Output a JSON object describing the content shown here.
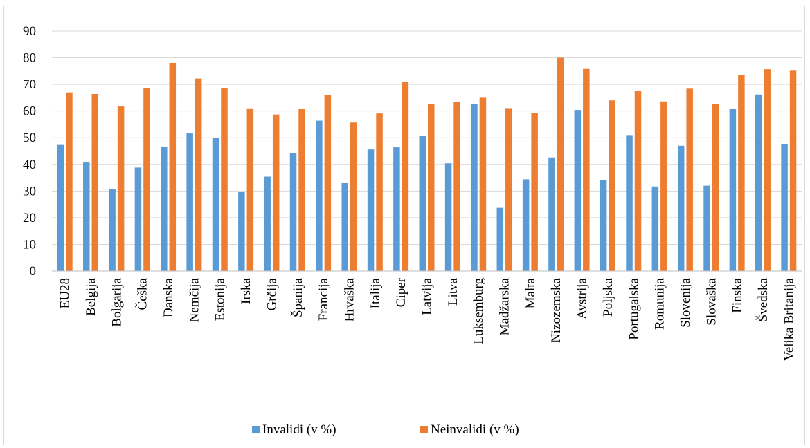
{
  "chart_data": {
    "type": "bar",
    "categories": [
      "EU28",
      "Belgija",
      "Bolgarija",
      "Češka",
      "Danska",
      "Nemčija",
      "Estonija",
      "Irska",
      "Grčija",
      "Španija",
      "Francija",
      "Hrvaška",
      "Italija",
      "Ciper",
      "Latvija",
      "Litva",
      "Luksemburg",
      "Madžarska",
      "Malta",
      "Nizozemska",
      "Avstrija",
      "Poljska",
      "Portugalska",
      "Romunija",
      "Slovenija",
      "Slovaška",
      "Finska",
      "Švedska",
      "Velika Britanija"
    ],
    "series": [
      {
        "name": "Invalidi (v %)",
        "color": "#5b9bd5",
        "values": [
          47.3,
          40.7,
          30.6,
          38.8,
          46.7,
          51.6,
          49.8,
          29.7,
          35.4,
          44.3,
          56.4,
          33.1,
          45.6,
          46.4,
          50.6,
          40.4,
          62.6,
          23.7,
          34.4,
          42.6,
          60.4,
          34.0,
          51.0,
          31.7,
          47.0,
          32.0,
          60.7,
          66.2,
          47.6
        ]
      },
      {
        "name": "Neinvalidi (v %)",
        "color": "#ed7d31",
        "values": [
          67.0,
          66.4,
          61.7,
          68.7,
          78.1,
          72.2,
          68.7,
          61.0,
          58.7,
          60.7,
          65.9,
          55.7,
          59.1,
          71.0,
          62.7,
          63.4,
          65.0,
          61.1,
          59.3,
          80.0,
          75.8,
          64.0,
          67.7,
          63.6,
          68.4,
          62.7,
          73.4,
          75.7,
          75.4
        ]
      }
    ],
    "ylim": [
      0,
      90
    ],
    "yticks": [
      0,
      10,
      20,
      30,
      40,
      50,
      60,
      70,
      80,
      90
    ],
    "grid": true,
    "legend_position": "bottom"
  }
}
